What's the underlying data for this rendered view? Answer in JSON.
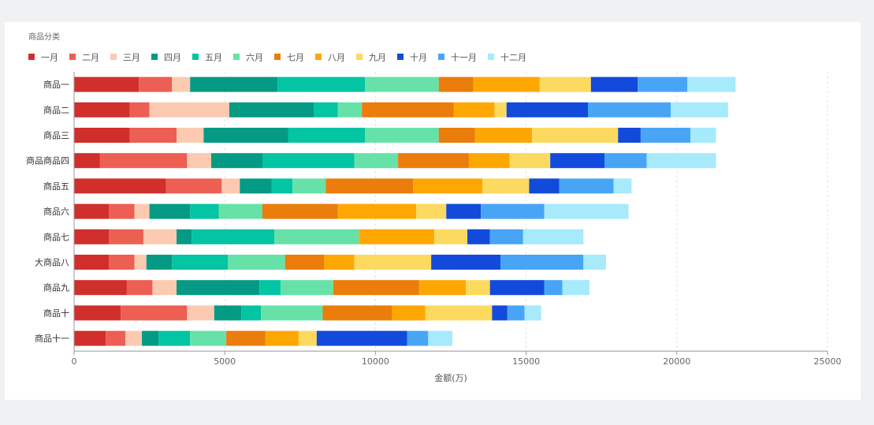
{
  "chart_data": {
    "type": "bar",
    "orientation": "horizontal",
    "stacked": true,
    "title": "",
    "legend_title": "商品分类",
    "xlabel": "金额(万)",
    "ylabel": "",
    "xlim": [
      0,
      25000
    ],
    "xticks": [
      0,
      5000,
      10000,
      15000,
      20000,
      25000
    ],
    "grid": "vertical dashed",
    "legend_position": "top-left",
    "categories": [
      "商品一",
      "商品二",
      "商品三",
      "商品商品四",
      "商品五",
      "商品六",
      "商品七",
      "大商品八",
      "商品九",
      "商品十",
      "商品十一"
    ],
    "series": [
      {
        "name": "一月",
        "color": "#d12f2b",
        "values": [
          2150,
          1850,
          1850,
          850,
          3050,
          1150,
          1150,
          1150,
          1750,
          1550,
          1050
        ]
      },
      {
        "name": "二月",
        "color": "#ec5f52",
        "values": [
          1100,
          650,
          1550,
          2900,
          1850,
          850,
          1150,
          850,
          850,
          2200,
          650
        ]
      },
      {
        "name": "三月",
        "color": "#fccab1",
        "values": [
          600,
          2650,
          900,
          800,
          600,
          500,
          1100,
          400,
          800,
          900,
          550
        ]
      },
      {
        "name": "四月",
        "color": "#049a84",
        "values": [
          2900,
          2800,
          2800,
          1700,
          1050,
          1350,
          500,
          850,
          2750,
          900,
          550
        ]
      },
      {
        "name": "五月",
        "color": "#03c4a3",
        "values": [
          2900,
          800,
          2550,
          3050,
          700,
          950,
          2750,
          1850,
          700,
          650,
          1050
        ]
      },
      {
        "name": "六月",
        "color": "#66e2a8",
        "values": [
          2450,
          800,
          2450,
          1450,
          1100,
          1450,
          2800,
          1900,
          1750,
          2050,
          1200
        ]
      },
      {
        "name": "七月",
        "color": "#ea7d0b",
        "values": [
          1150,
          3050,
          1200,
          2350,
          2900,
          2500,
          0,
          1300,
          2850,
          2300,
          1300
        ]
      },
      {
        "name": "八月",
        "color": "#fea703",
        "values": [
          2200,
          1350,
          1900,
          1350,
          2300,
          2600,
          2500,
          1000,
          1550,
          1100,
          1100
        ]
      },
      {
        "name": "九月",
        "color": "#fcd95f",
        "values": [
          1700,
          400,
          2850,
          1350,
          1550,
          1000,
          1100,
          2550,
          800,
          2220,
          600
        ]
      },
      {
        "name": "十月",
        "color": "#124adb",
        "values": [
          1550,
          2700,
          750,
          1800,
          1000,
          1150,
          750,
          2300,
          1800,
          500,
          3000
        ]
      },
      {
        "name": "十一月",
        "color": "#48a5f6",
        "values": [
          1650,
          2750,
          1650,
          1400,
          1800,
          2100,
          1100,
          2750,
          600,
          580,
          700
        ]
      },
      {
        "name": "十二月",
        "color": "#a6eafc",
        "values": [
          1600,
          1900,
          850,
          2300,
          600,
          2800,
          2000,
          750,
          900,
          550,
          800
        ]
      }
    ]
  }
}
